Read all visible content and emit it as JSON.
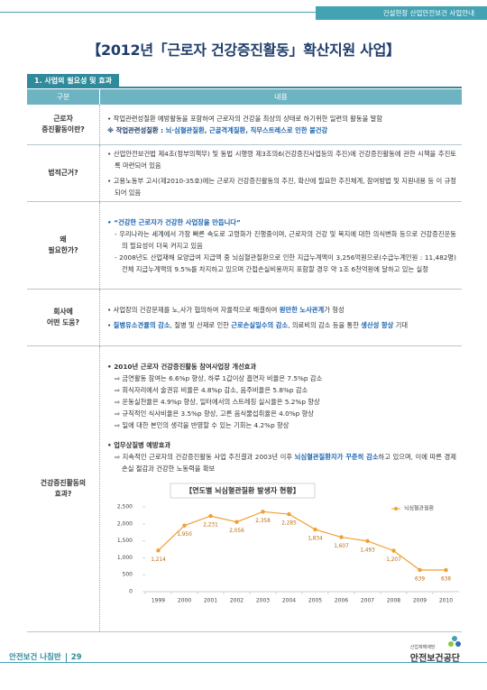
{
  "header": {
    "tagline": "건설현장 산업안전보건 사업안내"
  },
  "title": "【2012년「근로자 건강증진활동」확산지원 사업】",
  "section": {
    "title": "1. 사업의 필요성 및 효과"
  },
  "table": {
    "columns": [
      "구분",
      "내용"
    ],
    "rows": [
      {
        "label": "근로자\n증진활동이란?",
        "paragraphs": [
          {
            "parts": [
              {
                "text": "• 작업관련성질환 예방활동을 포함하여 근로자의 건강을 최상의 상태로 하기위한 일련의 활동을 말함"
              }
            ]
          },
          {
            "parts": [
              {
                "text": "※ 작업관련성질환 : ",
                "color": "#1f3d6b",
                "bold": true
              },
              {
                "text": "뇌·심혈관질환, 근골격계질환, 직무스트레스로 인한 불건강",
                "color": "#1a63b0",
                "bold": true
              }
            ]
          }
        ]
      },
      {
        "label": "법적근거?",
        "paragraphs": [
          {
            "parts": [
              {
                "text": "• 산업안전보건법 제4조(정부의책무) 및 동법 시행령 제3조의6(건강증진사업등의 추진)에 건강증진활동에 관한 시책을 추진토록 마련되어 있음"
              }
            ]
          },
          {
            "parts": [
              {
                "text": "• 고용노동부 고시(제2010-35호)에는 근로자 건강증진활동의 추진, 확산에 필요한 추진체계, 참여방법 및 지원내용 등 이 규정되어 있음"
              }
            ]
          }
        ]
      },
      {
        "label": "왜\n필요한가?",
        "paragraphs": [
          {
            "parts": [
              {
                "text": "• “건강한 근로자가 건강한 사업장을 만듭니다”",
                "color": "#1a63b0",
                "bold": true
              }
            ]
          },
          {
            "parts": [
              {
                "text": "- 우리나라는 세계에서 가장 빠른 속도로 고령화가 진행중이며, 근로자의 건강 및 복지에 대한 의식변화 등으로 건강증진운동의 필요성이 더욱 커지고 있음"
              }
            ]
          },
          {
            "parts": [
              {
                "text": "- 2008년도 산업재해 요양급여 지급액 중 뇌심혈관질환으로 인한 지급누계액이 3,256억원으로(수급누계인원 : 11,482명) 전체 지급누계액의 9.5%를 차지하고 있으며 간접손실비용까지 포함할 경우 약 1조 6천억원에 달하고 있는 실정"
              }
            ]
          }
        ]
      },
      {
        "label": "회사에\n어떤 도움?",
        "paragraphs": [
          {
            "parts": [
              {
                "text": "• 사업장의 건강문제를 노,사가 협의하여 자율적으로 해결하여 "
              },
              {
                "text": "원만한 노사관계",
                "color": "#1a63b0",
                "bold": true
              },
              {
                "text": "가 형성"
              }
            ]
          },
          {
            "parts": [
              {
                "text": "• "
              },
              {
                "text": "질병유소견율의 감소",
                "color": "#1a63b0",
                "bold": true
              },
              {
                "text": ", 질병 및 산재로 인한 "
              },
              {
                "text": "근로손실일수의 감소",
                "color": "#1a63b0",
                "bold": true
              },
              {
                "text": ", 의료비의 감소 등을 통한 "
              },
              {
                "text": "생산성 향상",
                "color": "#1a63b0",
                "bold": true
              },
              {
                "text": " 기대"
              }
            ]
          }
        ]
      },
      {
        "label": "건강증진활동의\n효과?",
        "paragraphs": [
          {
            "parts": [
              {
                "text": "• 2010년 근로자 건강증진활동 참여사업장 개선효과",
                "bold": true
              }
            ]
          },
          {
            "parts": [
              {
                "text": "⇨ 금연활동 참여는 6.6%p 향상, 하루 1갑이상 흡연자 비율은 7.5%p 감소"
              }
            ]
          },
          {
            "parts": [
              {
                "text": "⇨ 회식자리에서 술권유 비율은 4.8%p 감소, 음주비율은 5.8%p 감소"
              }
            ]
          },
          {
            "parts": [
              {
                "text": "⇨ 운동실천율은 4.9%p 향상, 일터에서의 스트레칭 실시율은 5.2%p 향상"
              }
            ]
          },
          {
            "parts": [
              {
                "text": "⇨ 규칙적인 식사비율은 3.5%p 향상, 고른 음식물섭취율은 4.0%p 향상"
              }
            ]
          },
          {
            "parts": [
              {
                "text": "⇨ 일에 대한 본인의 생각을 반영할 수 있는 기회는 4.2%p 향상"
              }
            ]
          },
          {
            "parts": [
              {
                "text": "• 업무상질병 예방효과",
                "bold": true
              }
            ]
          },
          {
            "parts": [
              {
                "text": "⇨ 지속적인 근로자의 건강증진활동 사업 추진결과 2003년 이후 "
              },
              {
                "text": "뇌심혈관질환자가 꾸준히 감소",
                "color": "#1a63b0",
                "bold": true
              },
              {
                "text": "하고 있으며, 이에 따른 경제손실 절감과 건강한 노동력을 확보"
              }
            ]
          }
        ]
      }
    ]
  },
  "chart_data": {
    "type": "line",
    "title": "【연도별 뇌심혈관질환 발생자 현황】",
    "categories": [
      "1999",
      "2000",
      "2001",
      "2002",
      "2003",
      "2004",
      "2005",
      "2006",
      "2007",
      "2008",
      "2009",
      "2010"
    ],
    "series": [
      {
        "name": "뇌심혈관질환",
        "color": "#f0a032",
        "values": [
          1214,
          1950,
          2231,
          2056,
          2358,
          2285,
          1834,
          1607,
          1493,
          1207,
          639,
          638
        ],
        "value_labels": [
          "1,214",
          "1,950",
          "2,231",
          "2,056",
          "2,358",
          "2,285",
          "1,834",
          "1,607",
          "1,493",
          "1,207",
          "639",
          "638"
        ]
      }
    ],
    "ylim": [
      0,
      2500
    ],
    "yticks": [
      0,
      500,
      {
        "value": 1000,
        "label": "1,000"
      },
      {
        "value": 1500,
        "label": "1,500"
      },
      {
        "value": 2000,
        "label": "2,000"
      },
      {
        "value": 2500,
        "label": "2,500"
      }
    ],
    "grid": false,
    "legend": "top-right"
  },
  "footer": {
    "book": "안전보건 나침반",
    "page": "29",
    "org_small": "산업재해예방",
    "org": "안전보건공단"
  }
}
